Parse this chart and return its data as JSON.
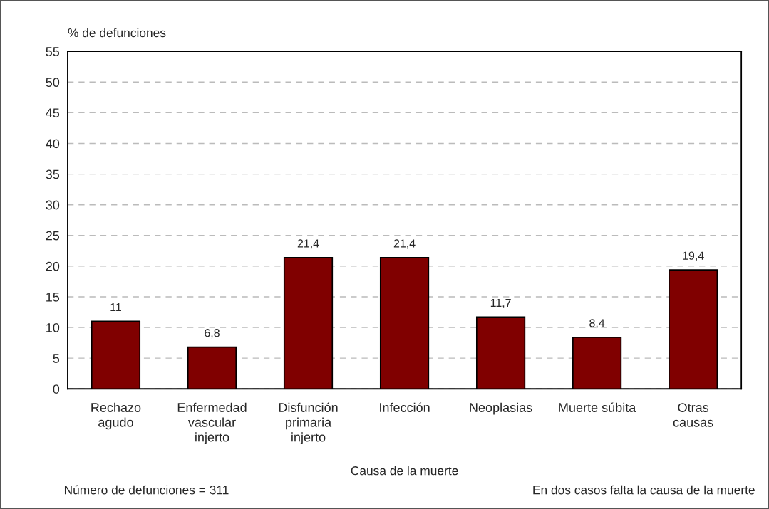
{
  "chart_data": {
    "type": "bar",
    "categories": [
      "Rechazo\nagudo",
      "Enfermedad\nvascular\ninjerto",
      "Disfunción\nprimaria\ninjerto",
      "Infección",
      "Neoplasias",
      "Muerte súbita",
      "Otras\ncausas"
    ],
    "values": [
      11,
      6.8,
      21.4,
      21.4,
      11.7,
      8.4,
      19.4
    ],
    "value_labels": [
      "11",
      "6,8",
      "21,4",
      "21,4",
      "11,7",
      "8,4",
      "19,4"
    ],
    "color": "#800000",
    "ylabel": "% de defunciones",
    "xlabel": "Causa de la muerte",
    "ylim": [
      0,
      55
    ],
    "yticks": [
      0,
      5,
      10,
      15,
      20,
      25,
      30,
      35,
      40,
      45,
      50,
      55
    ],
    "grid": "y",
    "legend": false,
    "annotations": [
      "Número de defunciones = 311",
      "En dos casos falta la causa de la muerte"
    ]
  }
}
